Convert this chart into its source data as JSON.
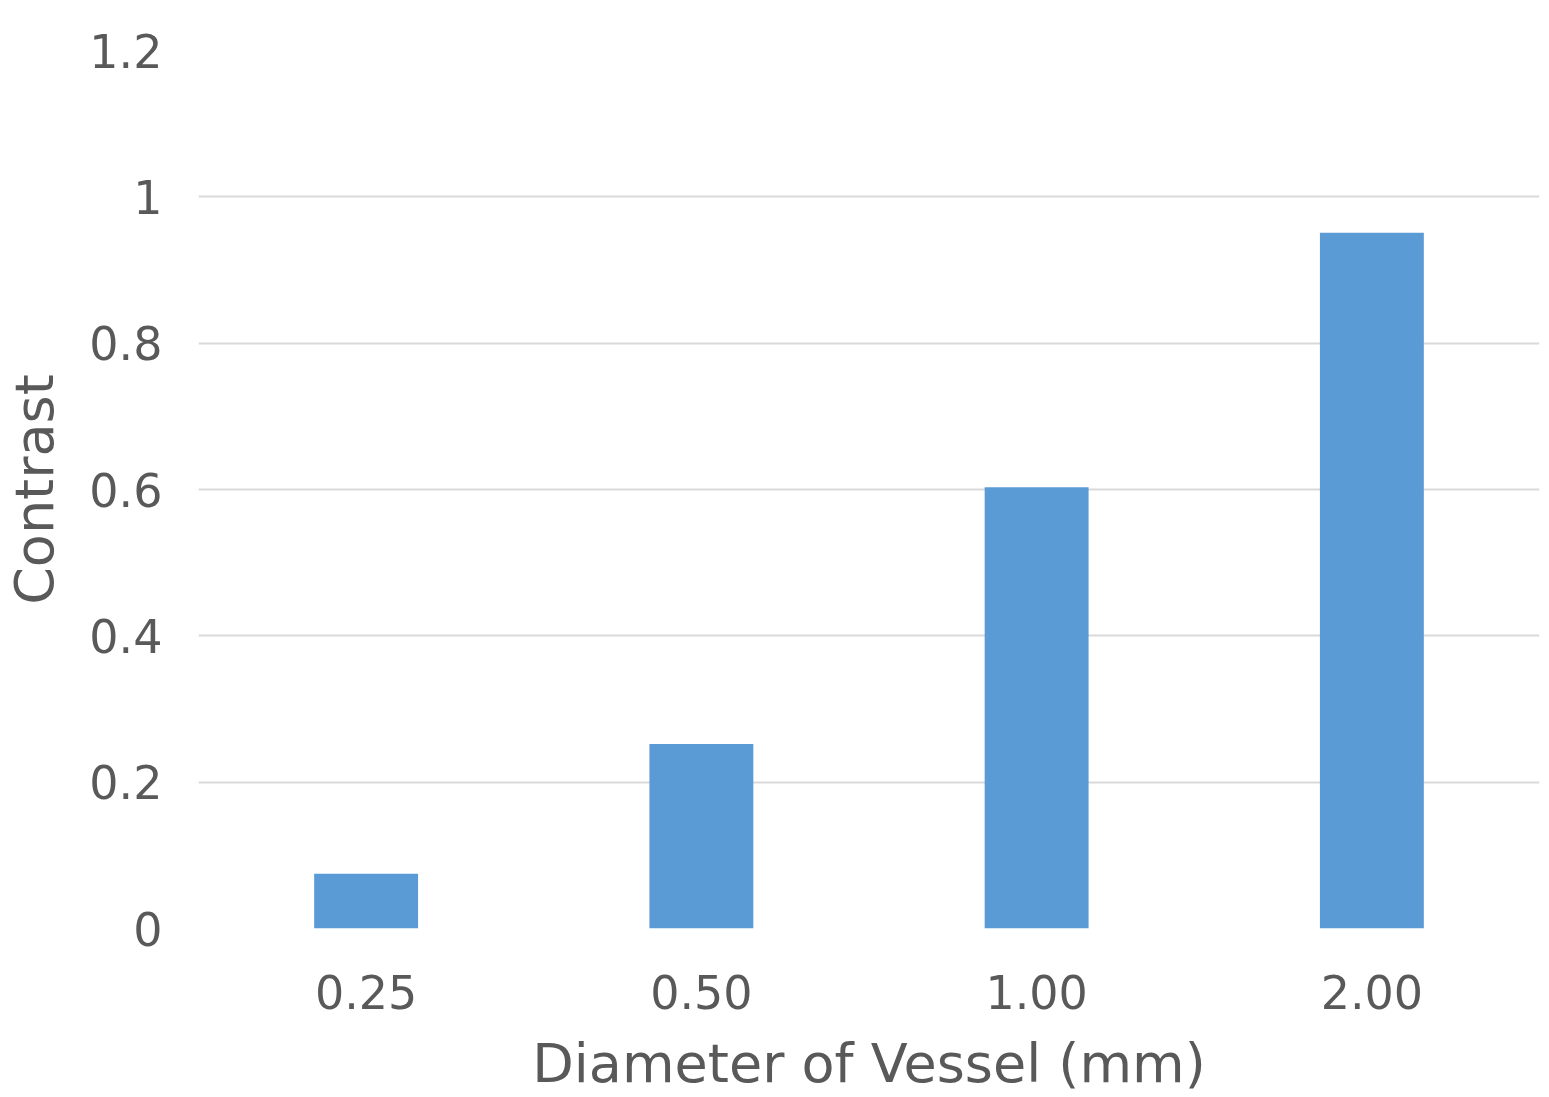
{
  "chart_data": {
    "type": "bar",
    "xlabel": "Diameter of Vessel (mm)",
    "ylabel": "Contrast",
    "categories": [
      "0.25",
      "0.50",
      "1.00",
      "2.00"
    ],
    "values": [
      0.075,
      0.252,
      0.603,
      0.951
    ],
    "color": "#5b9bd5",
    "ylim": [
      0,
      1.2
    ],
    "yticks": [
      0,
      0.2,
      0.4,
      0.6,
      0.8,
      1,
      1.2
    ],
    "grid": "y"
  }
}
